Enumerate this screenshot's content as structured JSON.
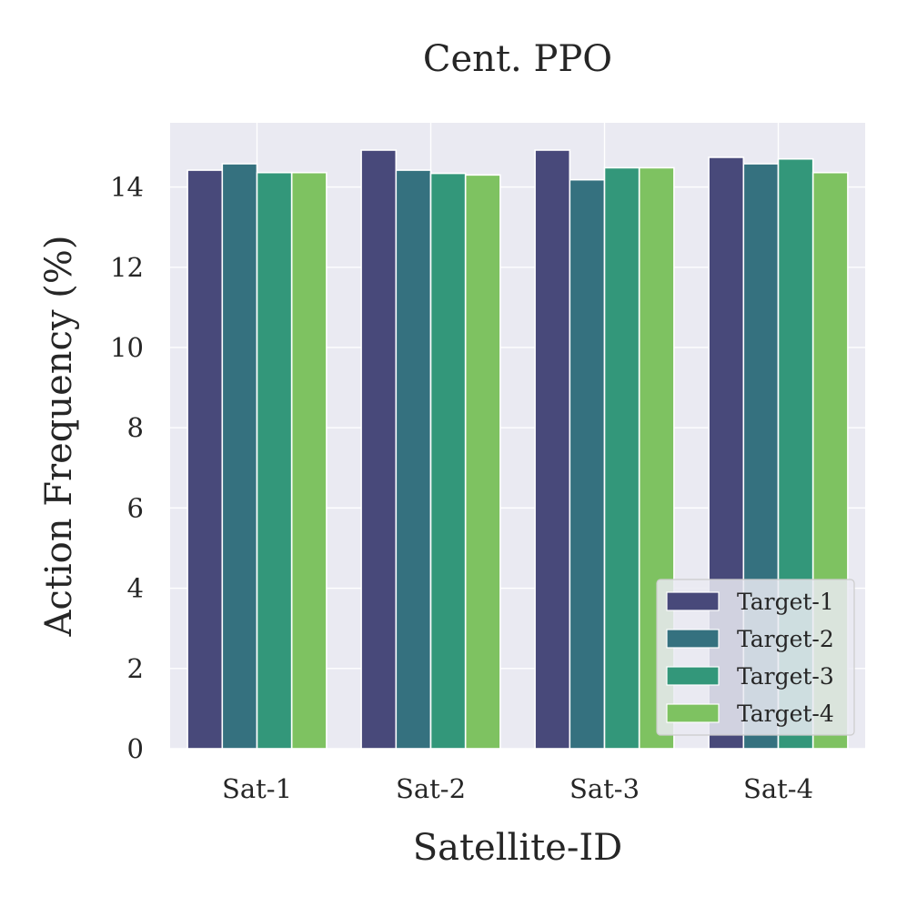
{
  "chart_data": {
    "type": "bar",
    "title": "Cent. PPO",
    "xlabel": "Satellite-ID",
    "ylabel": "Action Frequency (%)",
    "categories": [
      "Sat-1",
      "Sat-2",
      "Sat-3",
      "Sat-4"
    ],
    "ylim": [
      0,
      15.6
    ],
    "yticks": [
      0,
      2,
      4,
      6,
      8,
      10,
      12,
      14
    ],
    "grid": true,
    "legend_position": "bottom-right",
    "series": [
      {
        "name": "Target-1",
        "color": "#48497a",
        "values": [
          14.42,
          14.92,
          14.92,
          14.74
        ]
      },
      {
        "name": "Target-2",
        "color": "#35717f",
        "values": [
          14.58,
          14.42,
          14.18,
          14.58
        ]
      },
      {
        "name": "Target-3",
        "color": "#33977a",
        "values": [
          14.36,
          14.34,
          14.48,
          14.7
        ]
      },
      {
        "name": "Target-4",
        "color": "#7ec261",
        "values": [
          14.36,
          14.3,
          14.48,
          14.36
        ]
      }
    ]
  },
  "colors": {
    "plot_background": "#eaeaf2",
    "grid": "#ffffff",
    "text": "#262626"
  }
}
